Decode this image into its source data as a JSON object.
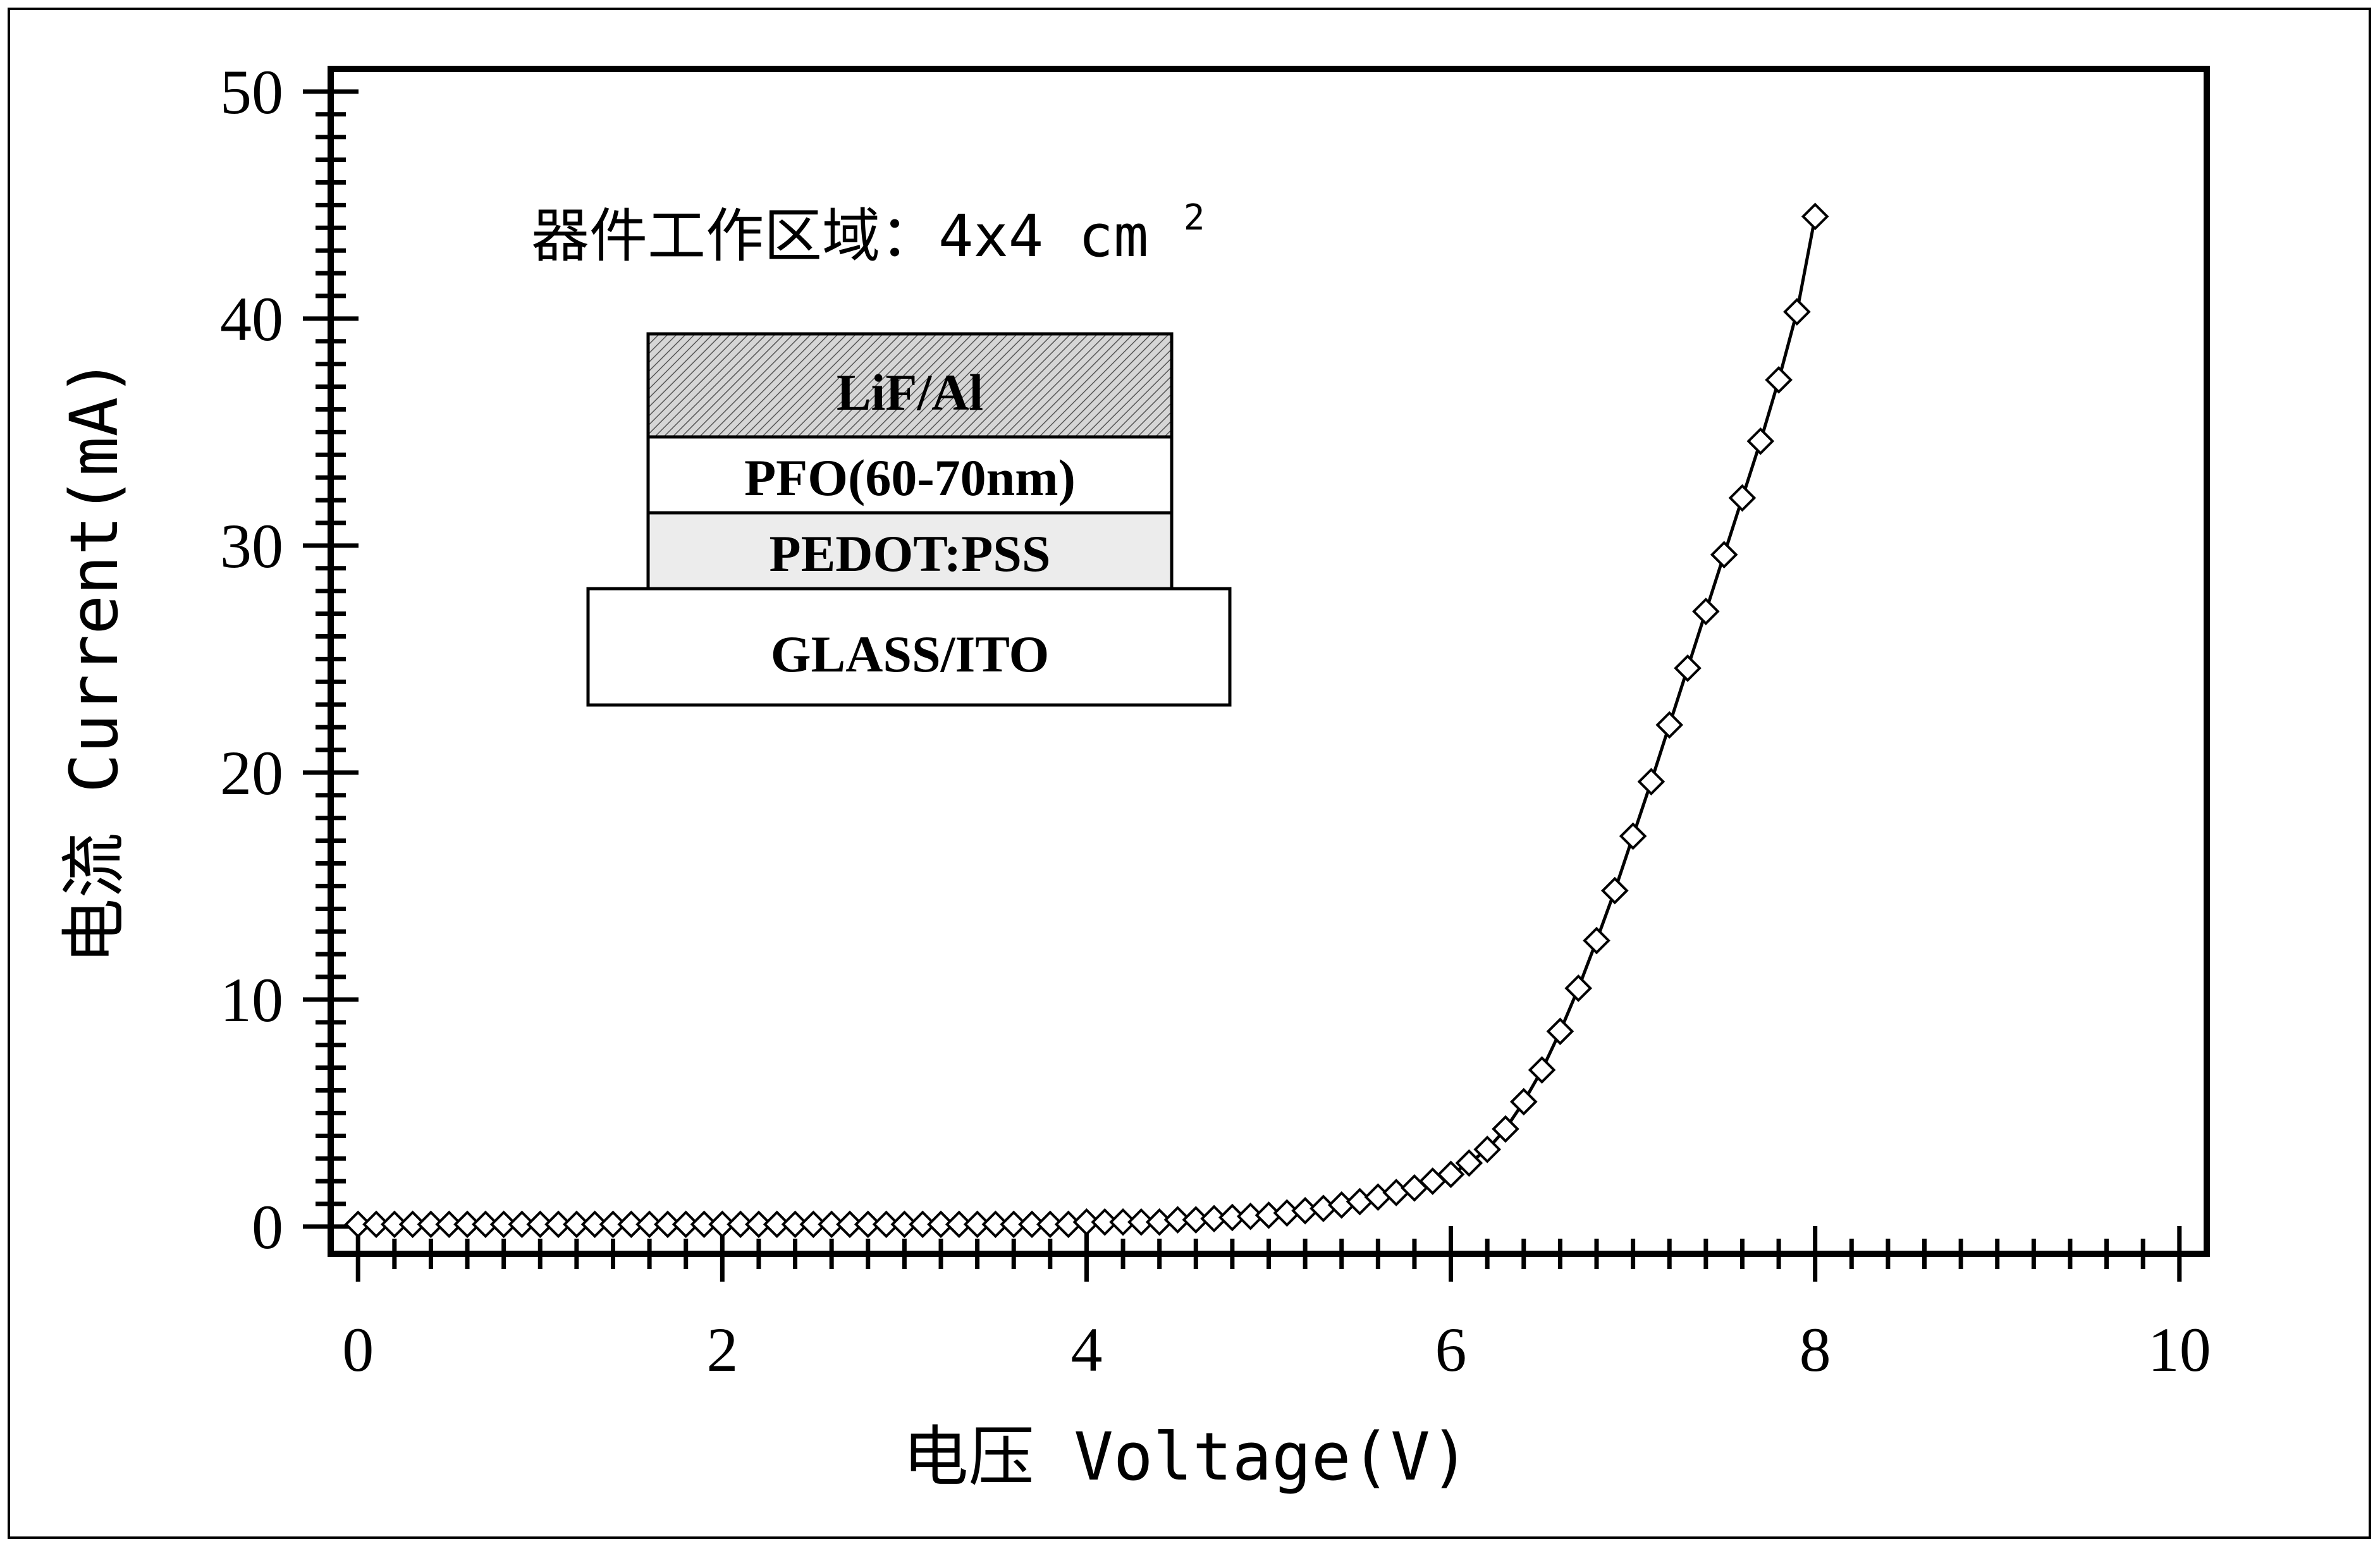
{
  "chart_data": {
    "type": "scatter",
    "xlabel": "电压 Voltage(V)",
    "ylabel": "电流 Current(mA)",
    "xlim": [
      -0.15,
      10.15
    ],
    "ylim": [
      -1.2,
      51
    ],
    "x_ticks": [
      0,
      2,
      4,
      6,
      8,
      10
    ],
    "x_tick_labels": [
      "0",
      "2",
      "4",
      "6",
      "8",
      "10"
    ],
    "y_ticks": [
      0,
      10,
      20,
      30,
      40,
      50
    ],
    "y_tick_labels": [
      "0",
      "10",
      "20",
      "30",
      "40",
      "50"
    ],
    "grid": false,
    "annotation": {
      "text": "器件工作区域：4x4 cm",
      "superscript": "2"
    },
    "device_stack": {
      "layers": [
        "LiF/Al",
        "PFO(60-70nm)",
        "PEDOT:PSS",
        "GLASS/ITO"
      ]
    },
    "series": [
      {
        "marker": "diamond",
        "line": true,
        "color": "#000000",
        "x": [
          0,
          0.1,
          0.2,
          0.3,
          0.4,
          0.5,
          0.6,
          0.7,
          0.8,
          0.9,
          1.0,
          1.1,
          1.2,
          1.3,
          1.4,
          1.5,
          1.6,
          1.7,
          1.8,
          1.9,
          2.0,
          2.1,
          2.2,
          2.3,
          2.4,
          2.5,
          2.6,
          2.7,
          2.8,
          2.9,
          3.0,
          3.1,
          3.2,
          3.3,
          3.4,
          3.5,
          3.6,
          3.7,
          3.8,
          3.9,
          4.0,
          4.1,
          4.2,
          4.3,
          4.4,
          4.5,
          4.6,
          4.7,
          4.8,
          4.9,
          5.0,
          5.1,
          5.2,
          5.3,
          5.4,
          5.5,
          5.6,
          5.7,
          5.8,
          5.9,
          6.0,
          6.1,
          6.2,
          6.3,
          6.4,
          6.5,
          6.6,
          6.7,
          6.8,
          6.9,
          7.0,
          7.1,
          7.2,
          7.3,
          7.4,
          7.5,
          7.6,
          7.7,
          7.8,
          7.9,
          8.0
        ],
        "y": [
          0.1,
          0.1,
          0.1,
          0.1,
          0.1,
          0.1,
          0.1,
          0.1,
          0.1,
          0.1,
          0.1,
          0.1,
          0.1,
          0.1,
          0.1,
          0.1,
          0.1,
          0.1,
          0.1,
          0.1,
          0.1,
          0.1,
          0.1,
          0.1,
          0.1,
          0.1,
          0.1,
          0.1,
          0.1,
          0.1,
          0.1,
          0.1,
          0.1,
          0.1,
          0.1,
          0.1,
          0.1,
          0.1,
          0.1,
          0.1,
          0.2,
          0.2,
          0.2,
          0.2,
          0.2,
          0.3,
          0.3,
          0.35,
          0.4,
          0.45,
          0.5,
          0.6,
          0.7,
          0.8,
          0.95,
          1.1,
          1.3,
          1.5,
          1.7,
          2.0,
          2.3,
          2.8,
          3.4,
          4.3,
          5.5,
          6.9,
          8.6,
          10.5,
          12.6,
          14.8,
          17.2,
          19.6,
          22.1,
          24.6,
          27.1,
          29.6,
          32.1,
          34.6,
          37.3,
          40.3,
          44.5
        ]
      }
    ]
  }
}
